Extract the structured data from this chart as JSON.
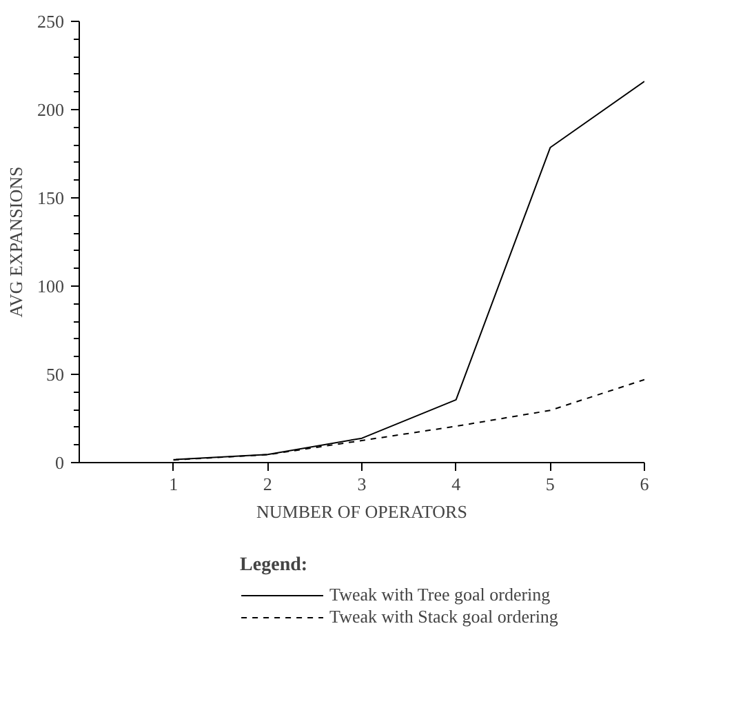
{
  "chart_data": {
    "type": "line",
    "xlabel": "NUMBER OF OPERATORS",
    "ylabel": "AVG EXPANSIONS",
    "legend_title": "Legend:",
    "x": [
      1,
      2,
      3,
      4,
      5,
      6
    ],
    "series": [
      {
        "name": "Tweak with Tree goal ordering",
        "color": "#000000",
        "line_style": "solid",
        "values": [
          1.7,
          4.6,
          13.8,
          35.6,
          178.5,
          216
        ]
      },
      {
        "name": "Tweak with Stack goal ordering",
        "color": "#000000",
        "line_style": "dashed",
        "values": [
          1.5,
          4.5,
          12.5,
          20.6,
          29.6,
          47
        ]
      }
    ],
    "xlim": [
      0,
      6
    ],
    "xticks": [
      1,
      2,
      3,
      4,
      5,
      6
    ],
    "ylim": [
      0,
      250
    ],
    "yticks": [
      0,
      50,
      100,
      150,
      200,
      250
    ],
    "grid": false,
    "legend": "bottom"
  }
}
